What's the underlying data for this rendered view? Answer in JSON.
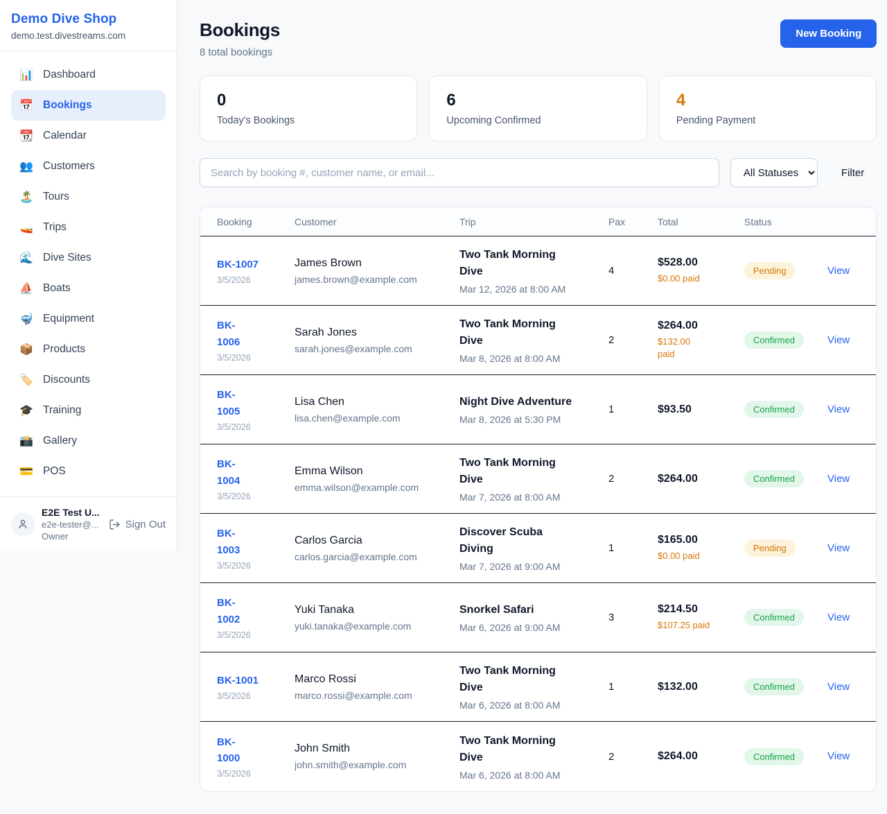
{
  "sidebar": {
    "shop_name": "Demo Dive Shop",
    "domain": "demo.test.divestreams.com",
    "items": [
      {
        "key": "dashboard",
        "icon": "bar-chart-icon",
        "glyph": "📊",
        "label": "Dashboard",
        "active": false
      },
      {
        "key": "bookings",
        "icon": "calendar-icon",
        "glyph": "📅",
        "label": "Bookings",
        "active": true
      },
      {
        "key": "calendar",
        "icon": "tear-off-calendar-icon",
        "glyph": "📆",
        "label": "Calendar",
        "active": false
      },
      {
        "key": "customers",
        "icon": "people-icon",
        "glyph": "👥",
        "label": "Customers",
        "active": false
      },
      {
        "key": "tours",
        "icon": "island-icon",
        "glyph": "🏝️",
        "label": "Tours",
        "active": false
      },
      {
        "key": "trips",
        "icon": "speedboat-icon",
        "glyph": "🚤",
        "label": "Trips",
        "active": false
      },
      {
        "key": "dive-sites",
        "icon": "wave-icon",
        "glyph": "🌊",
        "label": "Dive Sites",
        "active": false
      },
      {
        "key": "boats",
        "icon": "sailboat-icon",
        "glyph": "⛵",
        "label": "Boats",
        "active": false
      },
      {
        "key": "equipment",
        "icon": "diving-mask-icon",
        "glyph": "🤿",
        "label": "Equipment",
        "active": false
      },
      {
        "key": "products",
        "icon": "package-icon",
        "glyph": "📦",
        "label": "Products",
        "active": false
      },
      {
        "key": "discounts",
        "icon": "tag-icon",
        "glyph": "🏷️",
        "label": "Discounts",
        "active": false
      },
      {
        "key": "training",
        "icon": "graduation-cap-icon",
        "glyph": "🎓",
        "label": "Training",
        "active": false
      },
      {
        "key": "gallery",
        "icon": "camera-flash-icon",
        "glyph": "📸",
        "label": "Gallery",
        "active": false
      },
      {
        "key": "pos",
        "icon": "credit-card-icon",
        "glyph": "💳",
        "label": "POS",
        "active": false
      }
    ],
    "user": {
      "name": "E2E Test U...",
      "email": "e2e-tester@...",
      "role": "Owner",
      "sign_out": "Sign Out"
    }
  },
  "header": {
    "title": "Bookings",
    "subtitle": "8 total bookings",
    "new_booking": "New Booking"
  },
  "stats": [
    {
      "value": "0",
      "label": "Today's Bookings",
      "orange": false
    },
    {
      "value": "6",
      "label": "Upcoming Confirmed",
      "orange": false
    },
    {
      "value": "4",
      "label": "Pending Payment",
      "orange": true
    }
  ],
  "controls": {
    "search_placeholder": "Search by booking #, customer name, or email...",
    "status_filter_selected": "All Statuses",
    "filter_label": "Filter"
  },
  "table": {
    "headers": [
      "Booking",
      "Customer",
      "Trip",
      "Pax",
      "Total",
      "Status"
    ],
    "view_label": "View",
    "rows": [
      {
        "id": "BK-1007",
        "date": "3/5/2026",
        "customer": "James Brown",
        "email": "james.brown@example.com",
        "trip": "Two Tank Morning\nDive",
        "trip_date": "Mar 12, 2026 at 8:00 AM",
        "pax": "4",
        "total": "$528.00",
        "paid": "$0.00 paid",
        "status": "Pending"
      },
      {
        "id": "BK-\n1006",
        "date": "3/5/2026",
        "customer": "Sarah Jones",
        "email": "sarah.jones@example.com",
        "trip": "Two Tank Morning\nDive",
        "trip_date": "Mar 8, 2026 at 8:00 AM",
        "pax": "2",
        "total": "$264.00",
        "paid": "$132.00\npaid",
        "status": "Confirmed"
      },
      {
        "id": "BK-\n1005",
        "date": "3/5/2026",
        "customer": "Lisa Chen",
        "email": "lisa.chen@example.com",
        "trip": "Night Dive Adventure",
        "trip_date": "Mar 8, 2026 at 5:30 PM",
        "pax": "1",
        "total": "$93.50",
        "paid": "",
        "status": "Confirmed"
      },
      {
        "id": "BK-\n1004",
        "date": "3/5/2026",
        "customer": "Emma Wilson",
        "email": "emma.wilson@example.com",
        "trip": "Two Tank Morning\nDive",
        "trip_date": "Mar 7, 2026 at 8:00 AM",
        "pax": "2",
        "total": "$264.00",
        "paid": "",
        "status": "Confirmed"
      },
      {
        "id": "BK-\n1003",
        "date": "3/5/2026",
        "customer": "Carlos Garcia",
        "email": "carlos.garcia@example.com",
        "trip": "Discover Scuba\nDiving",
        "trip_date": "Mar 7, 2026 at 9:00 AM",
        "pax": "1",
        "total": "$165.00",
        "paid": "$0.00 paid",
        "status": "Pending"
      },
      {
        "id": "BK-\n1002",
        "date": "3/5/2026",
        "customer": "Yuki Tanaka",
        "email": "yuki.tanaka@example.com",
        "trip": "Snorkel Safari",
        "trip_date": "Mar 6, 2026 at 9:00 AM",
        "pax": "3",
        "total": "$214.50",
        "paid": "$107.25 paid",
        "status": "Confirmed"
      },
      {
        "id": "BK-1001",
        "date": "3/5/2026",
        "customer": "Marco Rossi",
        "email": "marco.rossi@example.com",
        "trip": "Two Tank Morning\nDive",
        "trip_date": "Mar 6, 2026 at 8:00 AM",
        "pax": "1",
        "total": "$132.00",
        "paid": "",
        "status": "Confirmed"
      },
      {
        "id": "BK-\n1000",
        "date": "3/5/2026",
        "customer": "John Smith",
        "email": "john.smith@example.com",
        "trip": "Two Tank Morning\nDive",
        "trip_date": "Mar 6, 2026 at 8:00 AM",
        "pax": "2",
        "total": "$264.00",
        "paid": "",
        "status": "Confirmed"
      }
    ]
  },
  "colors": {
    "accent_blue": "#2563eb",
    "orange": "#d97706",
    "green": "#16a34a",
    "pending_badge_bg": "#fcf3da",
    "confirmed_badge_bg": "#e2f6e9"
  }
}
